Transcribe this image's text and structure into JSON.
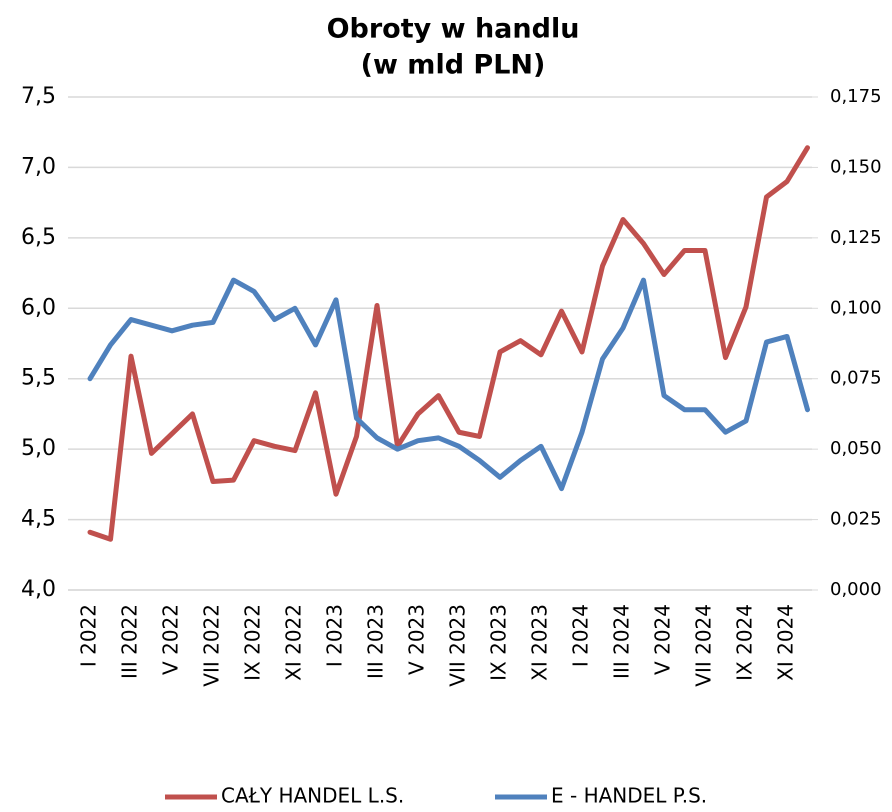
{
  "chart_data": {
    "type": "line",
    "title": "Obroty w handlu",
    "subtitle": "(w mld PLN)",
    "categories": [
      "I 2022",
      null,
      "III 2022",
      null,
      "V 2022",
      null,
      "VII 2022",
      null,
      "IX 2022",
      null,
      "XI 2022",
      null,
      "I 2023",
      null,
      "III 2023",
      null,
      "V 2023",
      null,
      "VII 2023",
      null,
      "IX 2023",
      null,
      "XI 2023",
      null,
      "I 2024",
      null,
      "III 2024",
      null,
      "V 2024",
      null,
      "VII 2024",
      null,
      "IX 2024",
      null,
      "XI 2024",
      null
    ],
    "series": [
      {
        "name": "CAŁY HANDEL L.S.",
        "color": "#c0504d",
        "axis": "y",
        "values": [
          4.41,
          4.36,
          5.66,
          4.97,
          5.11,
          5.25,
          4.77,
          4.78,
          5.06,
          5.02,
          4.99,
          5.4,
          4.68,
          5.09,
          6.02,
          5.02,
          5.25,
          5.38,
          5.12,
          5.09,
          5.69,
          5.77,
          5.67,
          5.98,
          5.69,
          6.3,
          6.63,
          6.46,
          6.24,
          6.41,
          6.41,
          5.65,
          6.01,
          6.79,
          6.9,
          7.14
        ]
      },
      {
        "name": "E - HANDEL P.S.",
        "color": "#4f81bd",
        "axis": "y2",
        "values": [
          0.075,
          0.087,
          0.096,
          0.094,
          0.092,
          0.094,
          0.095,
          0.11,
          0.106,
          0.096,
          0.1,
          0.087,
          0.103,
          0.061,
          0.054,
          0.05,
          0.053,
          0.054,
          0.051,
          0.046,
          0.04,
          0.046,
          0.051,
          0.036,
          0.056,
          0.082,
          0.093,
          0.11,
          0.069,
          0.064,
          0.064,
          0.056,
          0.06,
          0.088,
          0.09,
          0.064
        ]
      }
    ],
    "ylim": [
      4.0,
      7.5
    ],
    "yticks": [
      {
        "value": 4.0,
        "label": "4,0"
      },
      {
        "value": 4.5,
        "label": "4,5"
      },
      {
        "value": 5.0,
        "label": "5,0"
      },
      {
        "value": 5.5,
        "label": "5,5"
      },
      {
        "value": 6.0,
        "label": "6,0"
      },
      {
        "value": 6.5,
        "label": "6,5"
      },
      {
        "value": 7.0,
        "label": "7,0"
      },
      {
        "value": 7.5,
        "label": "7,5"
      }
    ],
    "y2lim": [
      0,
      0.175
    ],
    "y2ticks": [
      {
        "value": 0,
        "label": "0,000"
      },
      {
        "value": 0.025,
        "label": "0,025"
      },
      {
        "value": 0.05,
        "label": "0,050"
      },
      {
        "value": 0.075,
        "label": "0,075"
      },
      {
        "value": 0.1,
        "label": "0,100"
      },
      {
        "value": 0.125,
        "label": "0,125"
      },
      {
        "value": 0.15,
        "label": "0,150"
      },
      {
        "value": 0.175,
        "label": "0,175"
      }
    ],
    "grid": true,
    "legend": "bottom"
  }
}
